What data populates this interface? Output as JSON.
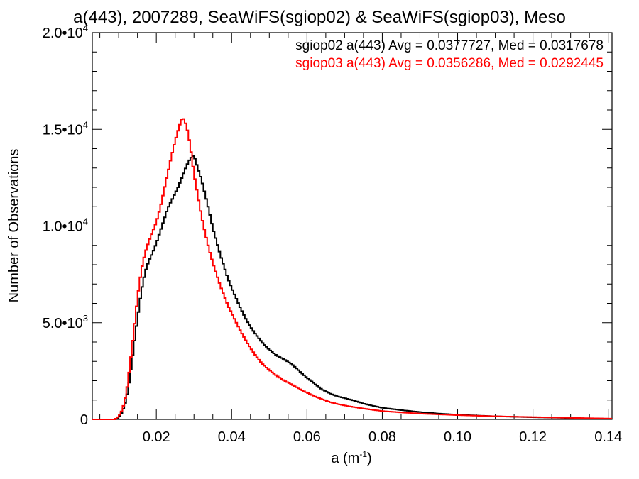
{
  "chart_data": {
    "type": "line",
    "title": "a(443), 2007289, SeaWiFS(sgiop02) & SeaWiFS(sgiop03), Meso",
    "xlabel_base": "a (m",
    "xlabel_sup": "-1",
    "xlabel_close": ")",
    "ylabel": "Number of Observations",
    "xlim": [
      0.003,
      0.141
    ],
    "ylim": [
      0,
      20000
    ],
    "x_ticks": [
      {
        "value": 0.02,
        "label": "0.02"
      },
      {
        "value": 0.04,
        "label": "0.04"
      },
      {
        "value": 0.06,
        "label": "0.06"
      },
      {
        "value": 0.08,
        "label": "0.08"
      },
      {
        "value": 0.1,
        "label": "0.10"
      },
      {
        "value": 0.12,
        "label": "0.12"
      },
      {
        "value": 0.14,
        "label": "0.14"
      }
    ],
    "y_ticks": [
      {
        "value": 0,
        "mant": "0",
        "exp": ""
      },
      {
        "value": 5000,
        "mant": "5.0•10",
        "exp": "3"
      },
      {
        "value": 10000,
        "mant": "1.0•10",
        "exp": "4"
      },
      {
        "value": 15000,
        "mant": "1.5•10",
        "exp": "4"
      },
      {
        "value": 20000,
        "mant": "2.0•10",
        "exp": "4"
      }
    ],
    "series": [
      {
        "color": "#000000",
        "stats_text": "sgiop02 a(443) Avg = 0.0377727, Med = 0.0317678",
        "points": [
          [
            0.003,
            0
          ],
          [
            0.009,
            0
          ],
          [
            0.01,
            100
          ],
          [
            0.011,
            400
          ],
          [
            0.012,
            1000
          ],
          [
            0.013,
            2200
          ],
          [
            0.014,
            3700
          ],
          [
            0.015,
            5200
          ],
          [
            0.016,
            6600
          ],
          [
            0.017,
            7600
          ],
          [
            0.018,
            8200
          ],
          [
            0.019,
            8600
          ],
          [
            0.02,
            9100
          ],
          [
            0.021,
            9700
          ],
          [
            0.022,
            10300
          ],
          [
            0.023,
            10900
          ],
          [
            0.024,
            11300
          ],
          [
            0.025,
            11700
          ],
          [
            0.026,
            12100
          ],
          [
            0.027,
            12600
          ],
          [
            0.028,
            13100
          ],
          [
            0.029,
            13500
          ],
          [
            0.03,
            13650
          ],
          [
            0.031,
            13000
          ],
          [
            0.032,
            12400
          ],
          [
            0.033,
            11600
          ],
          [
            0.034,
            10800
          ],
          [
            0.035,
            9900
          ],
          [
            0.036,
            9200
          ],
          [
            0.037,
            8500
          ],
          [
            0.038,
            7900
          ],
          [
            0.039,
            7300
          ],
          [
            0.04,
            6800
          ],
          [
            0.042,
            5900
          ],
          [
            0.044,
            5100
          ],
          [
            0.046,
            4500
          ],
          [
            0.048,
            4000
          ],
          [
            0.05,
            3600
          ],
          [
            0.052,
            3300
          ],
          [
            0.054,
            3100
          ],
          [
            0.056,
            2850
          ],
          [
            0.058,
            2500
          ],
          [
            0.06,
            2150
          ],
          [
            0.062,
            1850
          ],
          [
            0.064,
            1550
          ],
          [
            0.066,
            1350
          ],
          [
            0.068,
            1200
          ],
          [
            0.07,
            1100
          ],
          [
            0.072,
            1000
          ],
          [
            0.075,
            820
          ],
          [
            0.078,
            680
          ],
          [
            0.08,
            600
          ],
          [
            0.085,
            480
          ],
          [
            0.09,
            380
          ],
          [
            0.095,
            300
          ],
          [
            0.1,
            240
          ],
          [
            0.11,
            160
          ],
          [
            0.12,
            110
          ],
          [
            0.13,
            70
          ],
          [
            0.141,
            30
          ]
        ]
      },
      {
        "color": "#ff0000",
        "stats_text": "sgiop03 a(443) Avg = 0.0356286, Med = 0.0292445",
        "points": [
          [
            0.003,
            0
          ],
          [
            0.009,
            0
          ],
          [
            0.01,
            150
          ],
          [
            0.011,
            500
          ],
          [
            0.012,
            1300
          ],
          [
            0.013,
            2800
          ],
          [
            0.014,
            4500
          ],
          [
            0.015,
            6300
          ],
          [
            0.016,
            7700
          ],
          [
            0.017,
            8600
          ],
          [
            0.018,
            9200
          ],
          [
            0.019,
            9700
          ],
          [
            0.02,
            10200
          ],
          [
            0.021,
            10900
          ],
          [
            0.022,
            11800
          ],
          [
            0.023,
            12700
          ],
          [
            0.024,
            13600
          ],
          [
            0.025,
            14400
          ],
          [
            0.026,
            15100
          ],
          [
            0.027,
            15650
          ],
          [
            0.028,
            15200
          ],
          [
            0.029,
            14200
          ],
          [
            0.03,
            12700
          ],
          [
            0.031,
            11600
          ],
          [
            0.032,
            10500
          ],
          [
            0.033,
            9600
          ],
          [
            0.034,
            8800
          ],
          [
            0.035,
            8100
          ],
          [
            0.036,
            7500
          ],
          [
            0.037,
            6900
          ],
          [
            0.038,
            6400
          ],
          [
            0.039,
            5900
          ],
          [
            0.04,
            5500
          ],
          [
            0.042,
            4700
          ],
          [
            0.044,
            4000
          ],
          [
            0.046,
            3400
          ],
          [
            0.048,
            2900
          ],
          [
            0.05,
            2550
          ],
          [
            0.052,
            2250
          ],
          [
            0.054,
            2000
          ],
          [
            0.056,
            1800
          ],
          [
            0.058,
            1580
          ],
          [
            0.06,
            1380
          ],
          [
            0.062,
            1200
          ],
          [
            0.064,
            1050
          ],
          [
            0.066,
            900
          ],
          [
            0.068,
            800
          ],
          [
            0.07,
            720
          ],
          [
            0.072,
            650
          ],
          [
            0.075,
            560
          ],
          [
            0.078,
            480
          ],
          [
            0.08,
            430
          ],
          [
            0.085,
            360
          ],
          [
            0.09,
            300
          ],
          [
            0.095,
            260
          ],
          [
            0.1,
            220
          ],
          [
            0.11,
            160
          ],
          [
            0.12,
            120
          ],
          [
            0.13,
            80
          ],
          [
            0.141,
            40
          ]
        ]
      }
    ]
  }
}
